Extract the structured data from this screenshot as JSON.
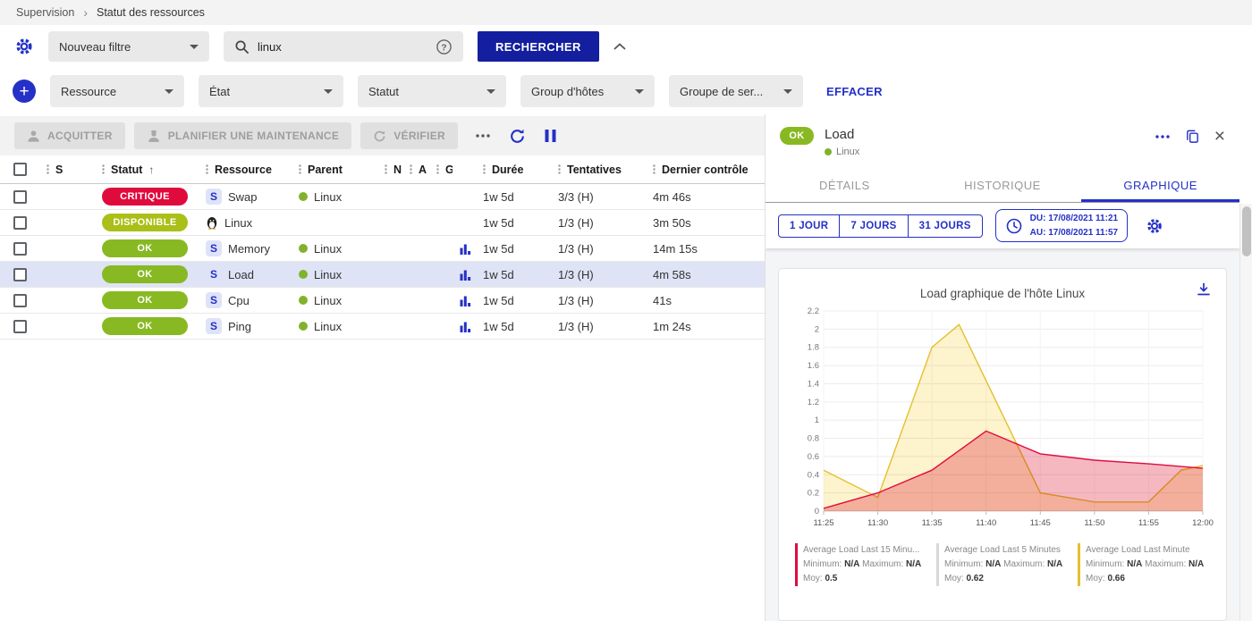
{
  "colors": {
    "accent": "#2430c7",
    "button": "#131f9e",
    "critical": "#e00b3d",
    "up": "#aabf17",
    "ok": "#88b922",
    "selected_row": "#dee3f6",
    "parent_dot": "#81b22d"
  },
  "breadcrumb": {
    "items": [
      "Supervision",
      "Statut des ressources"
    ]
  },
  "filter_bar": {
    "filter_select_value": "Nouveau filtre",
    "search_value": "linux",
    "search_button_label": "RECHERCHER"
  },
  "criteria_bar": {
    "dropdowns": [
      "Ressource",
      "État",
      "Statut",
      "Group d'hôtes",
      "Groupe de ser..."
    ],
    "clear_label": "EFFACER"
  },
  "toolbar": {
    "acknowledge_label": "ACQUITTER",
    "maintenance_label": "PLANIFIER UNE MAINTENANCE",
    "check_label": "VÉRIFIER"
  },
  "table": {
    "headers": {
      "s": "S",
      "status": "Statut",
      "resource": "Ressource",
      "parent": "Parent",
      "n": "N",
      "a": "A",
      "g": "G",
      "duration": "Durée",
      "tries": "Tentatives",
      "last_check": "Dernier contrôle"
    },
    "rows": [
      {
        "status": "CRITIQUE",
        "status_color": "#e00b3d",
        "kind": "service",
        "resource": "Swap",
        "parent": "Linux",
        "has_graph": false,
        "duration": "1w 5d",
        "tries": "3/3 (H)",
        "last_check": "4m 46s",
        "selected": false
      },
      {
        "status": "DISPONIBLE",
        "status_color": "#aabf17",
        "kind": "host",
        "resource": "Linux",
        "parent": "",
        "has_graph": false,
        "duration": "1w 5d",
        "tries": "1/3 (H)",
        "last_check": "3m 50s",
        "selected": false
      },
      {
        "status": "OK",
        "status_color": "#88b922",
        "kind": "service",
        "resource": "Memory",
        "parent": "Linux",
        "has_graph": true,
        "duration": "1w 5d",
        "tries": "1/3 (H)",
        "last_check": "14m 15s",
        "selected": false
      },
      {
        "status": "OK",
        "status_color": "#88b922",
        "kind": "service",
        "resource": "Load",
        "parent": "Linux",
        "has_graph": true,
        "duration": "1w 5d",
        "tries": "1/3 (H)",
        "last_check": "4m 58s",
        "selected": true
      },
      {
        "status": "OK",
        "status_color": "#88b922",
        "kind": "service",
        "resource": "Cpu",
        "parent": "Linux",
        "has_graph": true,
        "duration": "1w 5d",
        "tries": "1/3 (H)",
        "last_check": "41s",
        "selected": false
      },
      {
        "status": "OK",
        "status_color": "#88b922",
        "kind": "service",
        "resource": "Ping",
        "parent": "Linux",
        "has_graph": true,
        "duration": "1w 5d",
        "tries": "1/3 (H)",
        "last_check": "1m 24s",
        "selected": false
      }
    ]
  },
  "panel": {
    "status": "OK",
    "status_color": "#88b922",
    "title": "Load",
    "subtitle": "Linux",
    "tabs": [
      "DÉTAILS",
      "HISTORIQUE",
      "GRAPHIQUE"
    ],
    "active_tab": "GRAPHIQUE",
    "range_buttons": [
      "1 JOUR",
      "7 JOURS",
      "31 JOURS"
    ],
    "date_from": "DU: 17/08/2021 11:21",
    "date_to": "AU: 17/08/2021 11:57"
  },
  "chart_data": {
    "type": "area",
    "title": "Load graphique de l'hôte Linux",
    "x_ticks": [
      "11:25",
      "11:30",
      "11:35",
      "11:40",
      "11:45",
      "11:50",
      "11:55",
      "12:00"
    ],
    "x_minutes_range": [
      0,
      35
    ],
    "ylim": [
      0,
      2.2
    ],
    "y_tick_step": 0.2,
    "grid": true,
    "legend_position": "bottom",
    "legend_labels": {
      "min": "Minimum:",
      "max": "Maximum:",
      "avg": "Moy:"
    },
    "series": [
      {
        "name": "Average Load Last 15 Minu...",
        "color": "#e00b3d",
        "fill": "rgba(244,180,190,0.95)",
        "minimum": "N/A",
        "maximum": "N/A",
        "avg": "0.5",
        "visible": true,
        "x": [
          0,
          5,
          10,
          15,
          20,
          25,
          30,
          35
        ],
        "y": [
          0.03,
          0.2,
          0.45,
          0.88,
          0.63,
          0.56,
          0.52,
          0.47
        ]
      },
      {
        "name": "Average Load Last 5 Minutes",
        "color": "#d8d8d8",
        "fill": "none",
        "minimum": "N/A",
        "maximum": "N/A",
        "avg": "0.62",
        "visible": false,
        "x": [],
        "y": []
      },
      {
        "name": "Average Load Last Minute",
        "color": "#e3c02f",
        "fill": "#fdf3cd",
        "minimum": "N/A",
        "maximum": "N/A",
        "avg": "0.66",
        "visible": true,
        "x": [
          0,
          5,
          10,
          12.5,
          20,
          25,
          30,
          33,
          35
        ],
        "y": [
          0.45,
          0.15,
          1.8,
          2.05,
          0.2,
          0.1,
          0.1,
          0.45,
          0.5
        ]
      }
    ]
  },
  "icons": {
    "settings-gear-icon": "gear",
    "search-icon": "magnifier",
    "help-icon": "question-circle",
    "collapse-filters-icon": "chevron-up",
    "add-criteria-icon": "plus-circle",
    "acknowledge-icon": "person",
    "maintenance-icon": "worker",
    "check-icon": "refresh-arrow",
    "more-actions-icon": "ellipsis",
    "refresh-icon": "refresh-arrow",
    "pause-icon": "pause-bars",
    "graph-icon": "bar-chart",
    "linux-host-icon": "penguin",
    "copy-link-icon": "copy",
    "close-icon": "x",
    "clock-icon": "clock",
    "download-icon": "download-arrow",
    "sort-asc-icon": "arrow-up",
    "drag-handle-icon": "vertical-dots",
    "chevron-down-icon": "caret-down"
  }
}
